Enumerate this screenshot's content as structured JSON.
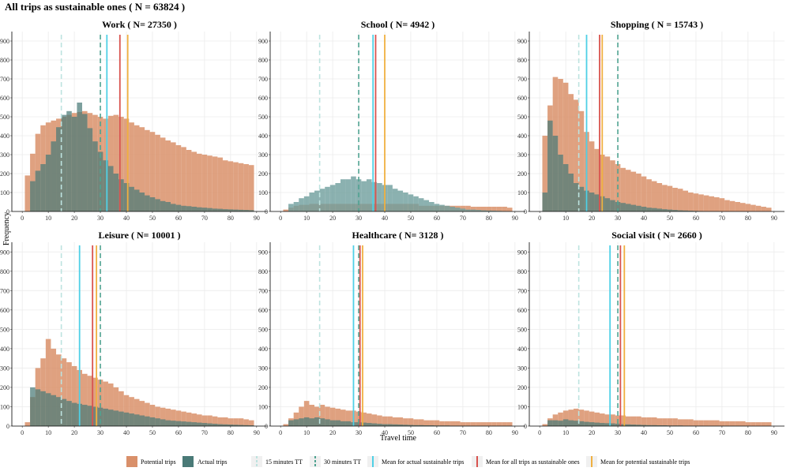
{
  "title": "All trips as sustainable ones ( N = 63824 )",
  "xlabel": "Travel time",
  "ylabel": "Frequency",
  "colors": {
    "potential": "#d9906a",
    "actual": "#4a7a77",
    "overlap": "#6f7d64",
    "tt15": "#bde3df",
    "tt30": "#4fa391",
    "mean_actual": "#4fd0e6",
    "mean_all": "#d9534f",
    "mean_potential": "#f0b040",
    "school_actual": "#6e9e9c"
  },
  "legend": {
    "potential": "Potential trips",
    "actual": "Actual trips",
    "tt15": "15 minutes TT",
    "tt30": "30 minutes TT",
    "mean_actual": "Mean for actual sustainable trips",
    "mean_all": "Mean for all trips as sustainable ones",
    "mean_potential": "Mean for potential sustainable trips"
  },
  "chart_data": [
    {
      "type": "histogram",
      "title": "Work ( N= 27350 )",
      "x_ticks": [
        0,
        10,
        20,
        30,
        40,
        50,
        60,
        70,
        80,
        90
      ],
      "y_ticks": [
        0,
        100,
        200,
        300,
        400,
        500,
        600,
        700,
        800,
        900
      ],
      "xlim": [
        -4,
        94
      ],
      "ylim": [
        0,
        950
      ],
      "grid": true,
      "bin_start": 1,
      "bin_width": 2,
      "potential": [
        190,
        305,
        410,
        455,
        470,
        480,
        490,
        500,
        510,
        520,
        525,
        530,
        520,
        510,
        500,
        490,
        505,
        510,
        500,
        490,
        470,
        455,
        445,
        430,
        420,
        405,
        390,
        375,
        365,
        350,
        340,
        325,
        315,
        305,
        300,
        295,
        290,
        285,
        270,
        265,
        260,
        255,
        250,
        245
      ],
      "actual": [
        0,
        160,
        215,
        250,
        300,
        370,
        445,
        510,
        530,
        500,
        575,
        515,
        440,
        370,
        315,
        270,
        240,
        200,
        170,
        150,
        130,
        115,
        100,
        85,
        75,
        65,
        55,
        50,
        40,
        35,
        30,
        28,
        25,
        22,
        20,
        18,
        15,
        14,
        12,
        11,
        10,
        9,
        8,
        7
      ],
      "markers": {
        "tt15": 15,
        "tt30": 30,
        "mean_actual": 32.5,
        "mean_all": 37.5,
        "mean_potential": 40.5
      }
    },
    {
      "type": "histogram",
      "title": "School ( N= 4942 )",
      "x_ticks": [
        0,
        10,
        20,
        30,
        40,
        50,
        60,
        70,
        80,
        90
      ],
      "y_ticks": [
        0,
        100,
        200,
        300,
        400,
        500,
        600,
        700,
        800,
        900
      ],
      "xlim": [
        -4,
        94
      ],
      "ylim": [
        0,
        950
      ],
      "grid": true,
      "bin_start": 1,
      "bin_width": 2,
      "potential": [
        10,
        20,
        30,
        35,
        35,
        40,
        40,
        40,
        40,
        40,
        40,
        40,
        40,
        40,
        40,
        40,
        40,
        40,
        40,
        40,
        40,
        40,
        40,
        40,
        40,
        40,
        30,
        30,
        30,
        30,
        30,
        30,
        30,
        30,
        30,
        30,
        25,
        25,
        25,
        25,
        25,
        25,
        25,
        20
      ],
      "actual": [
        0,
        40,
        50,
        70,
        80,
        100,
        110,
        120,
        130,
        140,
        150,
        170,
        170,
        185,
        170,
        160,
        170,
        155,
        150,
        140,
        140,
        120,
        110,
        100,
        90,
        80,
        70,
        60,
        50,
        40,
        35,
        30,
        25,
        20,
        15,
        10,
        10,
        8,
        6,
        5,
        4,
        3,
        2,
        1
      ],
      "markers": {
        "tt15": 15,
        "tt30": 30,
        "mean_actual": 35.5,
        "mean_all": 36.5,
        "mean_potential": 40
      }
    },
    {
      "type": "histogram",
      "title": "Shopping ( N = 15743 )",
      "x_ticks": [
        0,
        10,
        20,
        30,
        40,
        50,
        60,
        70,
        80,
        90
      ],
      "y_ticks": [
        0,
        100,
        200,
        300,
        400,
        500,
        600,
        700,
        800,
        900
      ],
      "xlim": [
        -4,
        94
      ],
      "ylim": [
        0,
        950
      ],
      "grid": true,
      "bin_start": 1,
      "bin_width": 2,
      "potential": [
        400,
        560,
        710,
        700,
        680,
        620,
        590,
        530,
        420,
        370,
        330,
        300,
        290,
        270,
        250,
        230,
        220,
        210,
        200,
        185,
        170,
        160,
        150,
        140,
        135,
        125,
        120,
        110,
        100,
        95,
        90,
        85,
        80,
        75,
        70,
        60,
        55,
        50,
        45,
        40,
        35,
        30,
        25,
        20
      ],
      "actual": [
        100,
        480,
        400,
        300,
        250,
        200,
        150,
        130,
        110,
        100,
        90,
        80,
        70,
        60,
        50,
        45,
        40,
        35,
        30,
        25,
        20,
        18,
        15,
        12,
        10,
        8,
        6,
        5,
        4,
        3,
        2,
        1,
        1,
        1,
        0,
        0,
        0,
        0,
        0,
        0,
        0,
        0,
        0,
        0
      ],
      "markers": {
        "tt15": 15,
        "tt30": 30,
        "mean_actual": 18,
        "mean_all": 23,
        "mean_potential": 24
      }
    },
    {
      "type": "histogram",
      "title": "Leisure ( N= 10001 )",
      "x_ticks": [
        0,
        10,
        20,
        30,
        40,
        50,
        60,
        70,
        80,
        90
      ],
      "y_ticks": [
        0,
        100,
        200,
        300,
        400,
        500,
        600,
        700,
        800,
        900
      ],
      "xlim": [
        -4,
        94
      ],
      "ylim": [
        0,
        950
      ],
      "grid": true,
      "bin_start": 1,
      "bin_width": 2,
      "potential": [
        20,
        150,
        300,
        350,
        450,
        400,
        370,
        350,
        330,
        310,
        290,
        270,
        260,
        250,
        240,
        230,
        220,
        200,
        180,
        160,
        150,
        140,
        130,
        120,
        110,
        100,
        95,
        90,
        85,
        80,
        75,
        70,
        65,
        60,
        55,
        55,
        50,
        45,
        45,
        40,
        40,
        40,
        35,
        30
      ],
      "actual": [
        0,
        200,
        190,
        180,
        170,
        160,
        150,
        140,
        130,
        120,
        115,
        110,
        105,
        100,
        95,
        90,
        85,
        80,
        75,
        70,
        65,
        60,
        55,
        50,
        45,
        40,
        35,
        30,
        28,
        26,
        24,
        22,
        20,
        18,
        16,
        14,
        12,
        10,
        9,
        8,
        7,
        6,
        5,
        4
      ],
      "markers": {
        "tt15": 15,
        "tt30": 30,
        "mean_actual": 22,
        "mean_all": 27,
        "mean_potential": 28.5
      }
    },
    {
      "type": "histogram",
      "title": "Healthcare ( N= 3128 )",
      "x_ticks": [
        0,
        10,
        20,
        30,
        40,
        50,
        60,
        70,
        80,
        90
      ],
      "y_ticks": [
        0,
        100,
        200,
        300,
        400,
        500,
        600,
        700,
        800,
        900
      ],
      "xlim": [
        -4,
        94
      ],
      "ylim": [
        0,
        950
      ],
      "grid": true,
      "bin_start": 1,
      "bin_width": 2,
      "potential": [
        10,
        40,
        70,
        100,
        130,
        110,
        100,
        110,
        100,
        95,
        90,
        85,
        80,
        80,
        75,
        70,
        65,
        60,
        55,
        50,
        50,
        45,
        45,
        40,
        40,
        35,
        35,
        30,
        30,
        30,
        25,
        25,
        25,
        25,
        20,
        20,
        20,
        20,
        20,
        20,
        20,
        20,
        20,
        20
      ],
      "actual": [
        0,
        30,
        35,
        40,
        45,
        40,
        45,
        40,
        35,
        30,
        30,
        25,
        25,
        20,
        20,
        18,
        16,
        14,
        12,
        10,
        10,
        9,
        8,
        7,
        6,
        5,
        5,
        4,
        4,
        3,
        3,
        3,
        2,
        2,
        2,
        2,
        1,
        1,
        1,
        1,
        1,
        1,
        1,
        1
      ],
      "markers": {
        "tt15": 15,
        "tt30": 30,
        "mean_actual": 28,
        "mean_all": 30.5,
        "mean_potential": 31.5
      }
    },
    {
      "type": "histogram",
      "title": "Social visit ( N= 2660 )",
      "x_ticks": [
        0,
        10,
        20,
        30,
        40,
        50,
        60,
        70,
        80,
        90
      ],
      "y_ticks": [
        0,
        100,
        200,
        300,
        400,
        500,
        600,
        700,
        800,
        900
      ],
      "xlim": [
        -4,
        94
      ],
      "ylim": [
        0,
        950
      ],
      "grid": true,
      "bin_start": 1,
      "bin_width": 2,
      "potential": [
        10,
        40,
        60,
        70,
        80,
        85,
        90,
        85,
        80,
        75,
        70,
        65,
        60,
        60,
        55,
        55,
        50,
        50,
        50,
        45,
        45,
        45,
        40,
        40,
        40,
        40,
        35,
        35,
        35,
        30,
        30,
        30,
        30,
        30,
        25,
        25,
        25,
        25,
        25,
        20,
        20,
        20,
        20,
        20
      ],
      "actual": [
        0,
        30,
        30,
        28,
        35,
        30,
        28,
        25,
        22,
        20,
        18,
        16,
        15,
        14,
        12,
        10,
        9,
        8,
        7,
        6,
        5,
        5,
        4,
        4,
        3,
        3,
        3,
        2,
        2,
        2,
        2,
        1,
        1,
        1,
        1,
        1,
        1,
        1,
        1,
        1,
        0,
        0,
        0,
        0
      ],
      "markers": {
        "tt15": 15,
        "tt30": 30,
        "mean_actual": 27,
        "mean_all": 31,
        "mean_potential": 32.5
      }
    }
  ]
}
